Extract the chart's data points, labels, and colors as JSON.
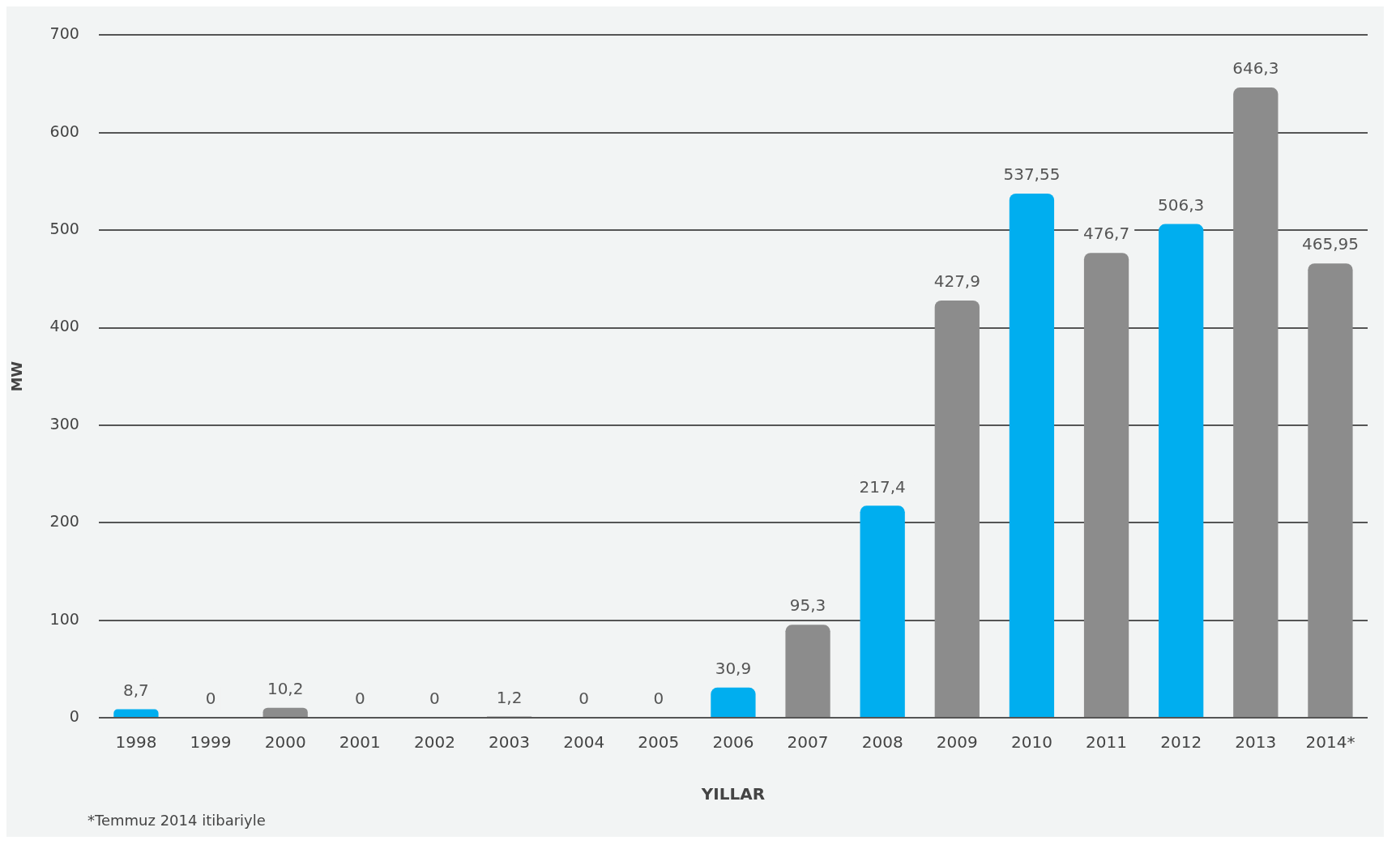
{
  "chart_data": {
    "type": "bar",
    "xlabel": "YILLAR",
    "ylabel": "MW",
    "categories": [
      "1998",
      "1999",
      "2000",
      "2001",
      "2002",
      "2003",
      "2004",
      "2005",
      "2006",
      "2007",
      "2008",
      "2009",
      "2010",
      "2011",
      "2012",
      "2013",
      "2014*"
    ],
    "values": [
      8.7,
      0,
      10.2,
      0,
      0,
      1.2,
      0,
      0,
      30.9,
      95.3,
      217.4,
      427.9,
      537.55,
      476.7,
      506.3,
      646.3,
      465.95
    ],
    "value_labels": [
      "8,7",
      "0",
      "10,2",
      "0",
      "0",
      "1,2",
      "0",
      "0",
      "30,9",
      "95,3",
      "217,4",
      "427,9",
      "537,55",
      "476,7",
      "506,3",
      "646,3",
      "465,95"
    ],
    "colors": [
      "#00aeef",
      "#8c8c8c",
      "#8c8c8c",
      "#8c8c8c",
      "#8c8c8c",
      "#8c8c8c",
      "#8c8c8c",
      "#8c8c8c",
      "#00aeef",
      "#8c8c8c",
      "#00aeef",
      "#8c8c8c",
      "#00aeef",
      "#8c8c8c",
      "#00aeef",
      "#8c8c8c",
      "#8c8c8c"
    ],
    "ylim": [
      0,
      700
    ],
    "yticks": [
      0,
      100,
      200,
      300,
      400,
      500,
      600,
      700
    ],
    "grid": "y",
    "annotations": [
      "*Temmuz 2014 itibariyle"
    ]
  }
}
